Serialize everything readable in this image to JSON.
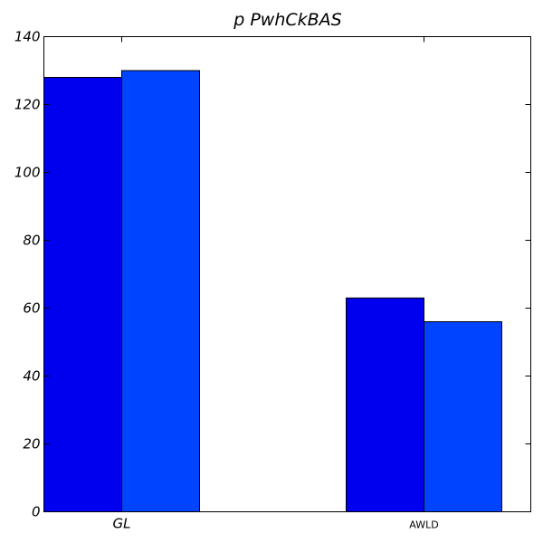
{
  "chart_data": {
    "type": "bar",
    "title": "p  PwhCkBAS",
    "xlabel": "",
    "ylabel": "",
    "categories": [
      "GL",
      "AWLD"
    ],
    "series": [
      {
        "values": [
          128,
          63
        ],
        "color": "#0000ee"
      },
      {
        "values": [
          130,
          56
        ],
        "color": "#0044ff"
      }
    ],
    "ylim": [
      0,
      140
    ],
    "yticks": [
      0,
      20,
      40,
      60,
      80,
      100,
      120,
      140
    ],
    "grid": false,
    "legend": "none"
  }
}
